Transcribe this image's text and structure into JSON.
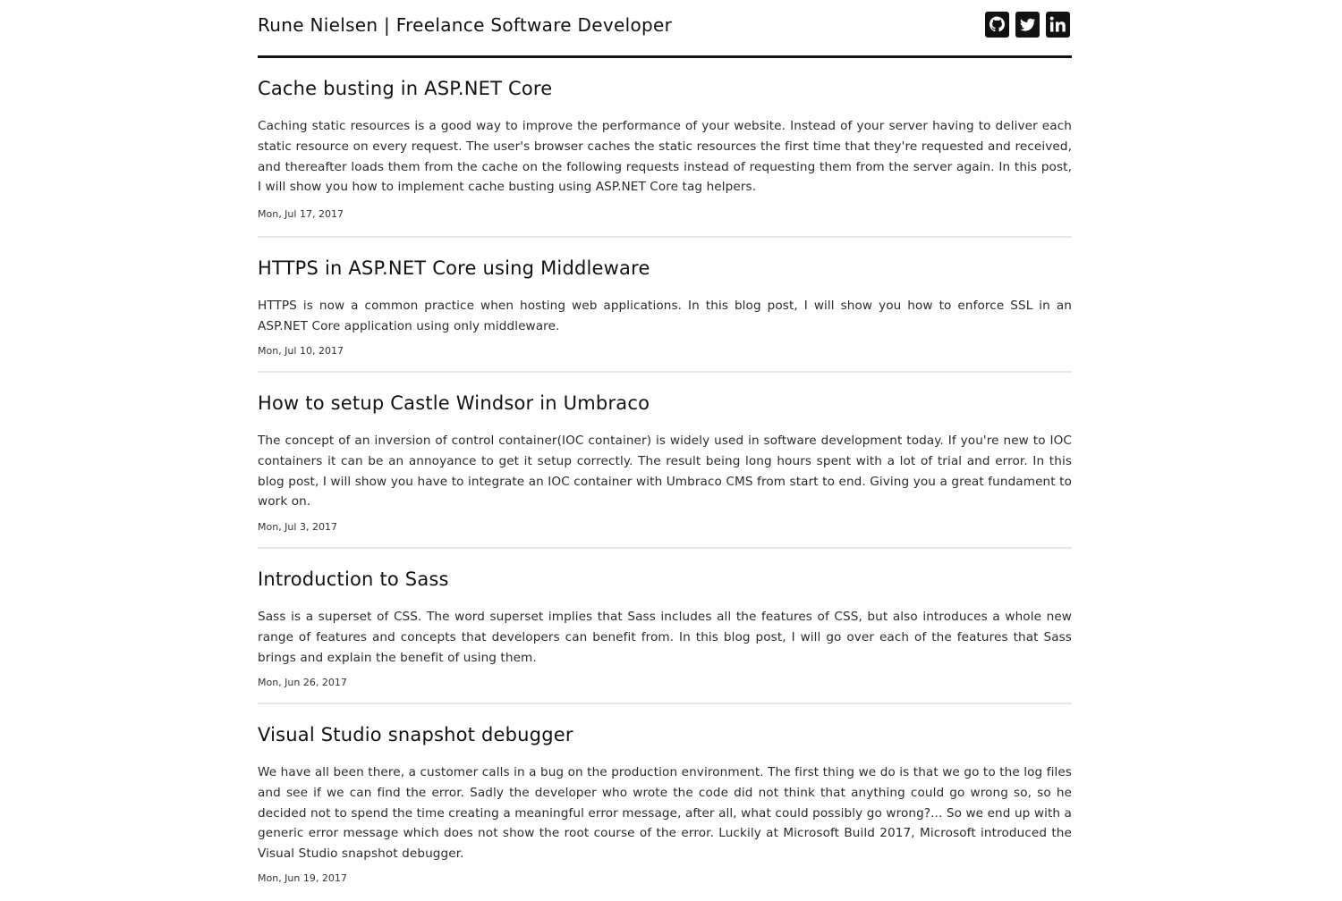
{
  "header": {
    "site_title": "Rune Nielsen | Freelance Software Developer",
    "social": [
      {
        "name": "github-icon"
      },
      {
        "name": "twitter-icon"
      },
      {
        "name": "linkedin-icon"
      }
    ]
  },
  "posts": [
    {
      "title": "Cache busting in ASP.NET Core",
      "excerpt": "Caching static resources is a good way to improve the performance of your website. Instead of your server having to deliver each static resource on every request. The user's browser caches the static resources the first time that they're requested and received, and thereafter loads them from the cache on the following requests instead of requesting them from the server again. In this post, I will show you how to implement cache busting using ASP.NET Core tag helpers.",
      "date": "Mon, Jul 17, 2017"
    },
    {
      "title": "HTTPS in ASP.NET Core using Middleware",
      "excerpt": "HTTPS is now a common practice when hosting web applications. In this blog post, I will show you how to enforce SSL in an ASP.NET Core application using only middleware.",
      "date": "Mon, Jul 10, 2017"
    },
    {
      "title": "How to setup Castle Windsor in Umbraco",
      "excerpt": "The concept of an inversion of control container(IOC container) is widely used in software development today. If you're new to IOC containers it can be an annoyance to get it setup correctly. The result being long hours spent with a lot of trial and error. In this blog post, I will show you have to integrate an IOC container with Umbraco CMS from start to end. Giving you a great fundament to work on.",
      "date": "Mon, Jul 3, 2017"
    },
    {
      "title": "Introduction to Sass",
      "excerpt": "Sass is a superset of CSS. The word superset implies that Sass includes all the features of CSS, but also introduces a whole new range of features and concepts that developers can benefit from. In this blog post, I will go over each of the features that Sass brings and explain the benefit of using them.",
      "date": "Mon, Jun 26, 2017"
    },
    {
      "title": "Visual Studio snapshot debugger",
      "excerpt": "We have all been there, a customer calls in a bug on the production environment. The first thing we do is that we go to the log files and see if we can find the error. Sadly the developer who wrote the code did not think that anything could go wrong so, so he decided not to spend the time creating a meaningful error message, after all, what could possibly go wrong?... So we end up with a generic error message which does not show the root course of the error. Luckily at Microsoft Build 2017, Microsoft introduced the Visual Studio snapshot debugger.",
      "date": "Mon, Jun 19, 2017"
    }
  ]
}
